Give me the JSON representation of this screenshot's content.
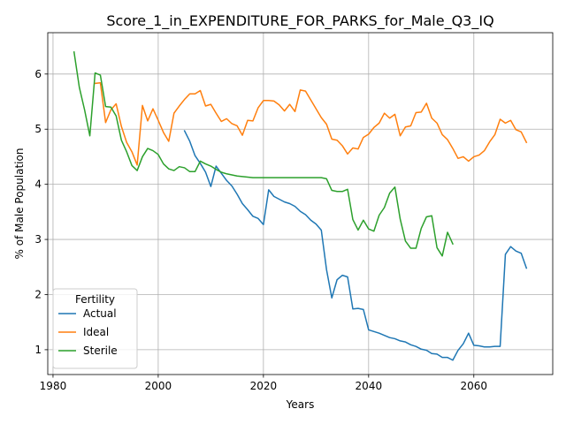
{
  "chart_data": {
    "type": "line",
    "title": "Score_1_in_EXPENDITURE_FOR_PARKS_for_Male_Q3_IQ",
    "xlabel": "Years",
    "ylabel": "% of Male Population",
    "xlim": [
      1979,
      2075
    ],
    "ylim": [
      0.55,
      6.75
    ],
    "xticks": [
      1980,
      2000,
      2020,
      2040,
      2060
    ],
    "yticks": [
      1,
      2,
      3,
      4,
      5,
      6
    ],
    "grid": true,
    "legend": {
      "title": "Fertility",
      "position": "lower-left"
    },
    "series": [
      {
        "name": "Actual",
        "color": "#1f77b4",
        "x": [
          2005,
          2006,
          2007,
          2008,
          2009,
          2010,
          2011,
          2012,
          2013,
          2014,
          2015,
          2016,
          2017,
          2018,
          2019,
          2020,
          2021,
          2022,
          2023,
          2024,
          2025,
          2026,
          2027,
          2028,
          2029,
          2030,
          2031,
          2032,
          2033,
          2034,
          2035,
          2036,
          2037,
          2038,
          2039,
          2040,
          2041,
          2042,
          2043,
          2044,
          2045,
          2046,
          2047,
          2048,
          2049,
          2050,
          2051,
          2052,
          2053,
          2054,
          2055,
          2056,
          2057,
          2058,
          2059,
          2060,
          2061,
          2062,
          2063,
          2064,
          2065,
          2066,
          2067,
          2068,
          2069,
          2070
        ],
        "y": [
          4.97,
          4.78,
          4.52,
          4.38,
          4.22,
          3.96,
          4.33,
          4.2,
          4.07,
          3.97,
          3.82,
          3.65,
          3.54,
          3.42,
          3.38,
          3.27,
          3.9,
          3.78,
          3.73,
          3.68,
          3.65,
          3.6,
          3.51,
          3.45,
          3.35,
          3.28,
          3.17,
          2.45,
          1.94,
          2.27,
          2.35,
          2.32,
          1.74,
          1.75,
          1.73,
          1.36,
          1.33,
          1.3,
          1.26,
          1.22,
          1.2,
          1.16,
          1.14,
          1.09,
          1.06,
          1.01,
          0.99,
          0.93,
          0.92,
          0.86,
          0.86,
          0.81,
          0.99,
          1.11,
          1.3,
          1.08,
          1.07,
          1.05,
          1.05,
          1.06,
          1.06,
          2.73,
          2.87,
          2.79,
          2.75,
          2.48
        ]
      },
      {
        "name": "Ideal",
        "color": "#ff7f0e",
        "x": [
          1988,
          1989,
          1990,
          1991,
          1992,
          1993,
          1994,
          1995,
          1996,
          1997,
          1998,
          1999,
          2000,
          2001,
          2002,
          2003,
          2004,
          2005,
          2006,
          2007,
          2008,
          2009,
          2010,
          2011,
          2012,
          2013,
          2014,
          2015,
          2016,
          2017,
          2018,
          2019,
          2020,
          2021,
          2022,
          2023,
          2024,
          2025,
          2026,
          2027,
          2028,
          2029,
          2030,
          2031,
          2032,
          2033,
          2034,
          2035,
          2036,
          2037,
          2038,
          2039,
          2040,
          2041,
          2042,
          2043,
          2044,
          2045,
          2046,
          2047,
          2048,
          2049,
          2050,
          2051,
          2052,
          2053,
          2054,
          2055,
          2056,
          2057,
          2058,
          2059,
          2060,
          2061,
          2062,
          2063,
          2064,
          2065,
          2066,
          2067,
          2068,
          2069,
          2070
        ],
        "y": [
          5.83,
          5.84,
          5.12,
          5.35,
          5.46,
          5.05,
          4.76,
          4.59,
          4.35,
          5.43,
          5.15,
          5.37,
          5.16,
          4.94,
          4.78,
          5.29,
          5.42,
          5.54,
          5.64,
          5.64,
          5.7,
          5.42,
          5.45,
          5.29,
          5.14,
          5.19,
          5.1,
          5.06,
          4.89,
          5.16,
          5.15,
          5.39,
          5.52,
          5.52,
          5.51,
          5.44,
          5.33,
          5.45,
          5.32,
          5.71,
          5.69,
          5.53,
          5.37,
          5.21,
          5.09,
          4.82,
          4.8,
          4.7,
          4.55,
          4.66,
          4.64,
          4.85,
          4.91,
          5.03,
          5.11,
          5.29,
          5.2,
          5.27,
          4.88,
          5.04,
          5.06,
          5.3,
          5.31,
          5.47,
          5.2,
          5.11,
          4.9,
          4.81,
          4.65,
          4.47,
          4.5,
          4.42,
          4.5,
          4.53,
          4.61,
          4.77,
          4.9,
          5.18,
          5.11,
          5.16,
          4.99,
          4.95,
          4.76
        ]
      },
      {
        "name": "Sterile",
        "color": "#2ca02c",
        "x": [
          1984,
          1985,
          1986,
          1987,
          1988,
          1989,
          1990,
          1991,
          1992,
          1993,
          1994,
          1995,
          1996,
          1997,
          1998,
          1999,
          2000,
          2001,
          2002,
          2003,
          2004,
          2005,
          2006,
          2007,
          2008,
          2009,
          2010,
          2011,
          2012,
          2013,
          2014,
          2015,
          2016,
          2017,
          2018,
          2019,
          2020,
          2021,
          2022,
          2023,
          2024,
          2025,
          2026,
          2027,
          2028,
          2029,
          2030,
          2031,
          2032,
          2033,
          2034,
          2035,
          2036,
          2037,
          2038,
          2039,
          2040,
          2041,
          2042,
          2043,
          2044,
          2045,
          2046,
          2047,
          2048,
          2049,
          2050,
          2051,
          2052,
          2053,
          2054,
          2055,
          2056
        ],
        "y": [
          6.4,
          5.76,
          5.35,
          4.88,
          6.02,
          5.98,
          5.41,
          5.4,
          5.24,
          4.8,
          4.59,
          4.34,
          4.25,
          4.5,
          4.65,
          4.61,
          4.54,
          4.37,
          4.28,
          4.25,
          4.32,
          4.3,
          4.23,
          4.23,
          4.42,
          4.37,
          4.33,
          4.27,
          4.22,
          4.19,
          4.17,
          4.15,
          4.14,
          4.13,
          4.12,
          4.12,
          4.12,
          4.12,
          4.12,
          4.12,
          4.12,
          4.12,
          4.12,
          4.12,
          4.12,
          4.12,
          4.12,
          4.12,
          4.1,
          3.89,
          3.87,
          3.87,
          3.91,
          3.36,
          3.17,
          3.35,
          3.19,
          3.15,
          3.44,
          3.58,
          3.84,
          3.95,
          3.37,
          2.97,
          2.84,
          2.84,
          3.2,
          3.41,
          3.43,
          2.85,
          2.7,
          3.13,
          2.92
        ]
      }
    ]
  }
}
